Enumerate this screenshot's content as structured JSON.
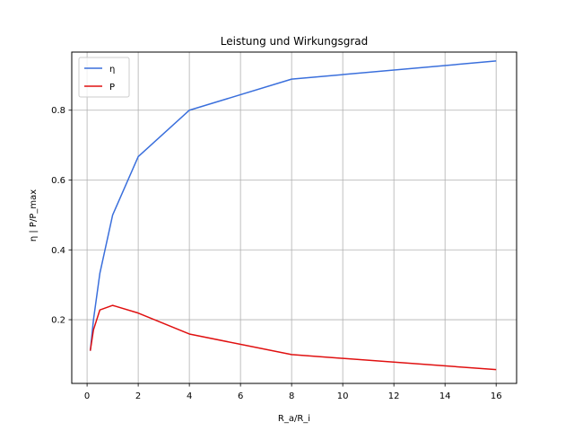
{
  "chart_data": {
    "type": "line",
    "title": "Leistung und Wirkungsgrad",
    "xlabel": "R_a/R_i",
    "ylabel": "η | P/P_max",
    "xlim": [
      -0.6,
      16.8
    ],
    "ylim": [
      0.0175,
      0.9665
    ],
    "xticks": [
      0,
      2,
      4,
      6,
      8,
      10,
      12,
      14,
      16
    ],
    "yticks": [
      0.2,
      0.4,
      0.6,
      0.8
    ],
    "grid": true,
    "legend_position": "top-left",
    "series": [
      {
        "name": "η",
        "color": "#3a6fdc",
        "x": [
          0.125,
          0.25,
          0.5,
          1,
          2,
          4,
          8,
          16
        ],
        "y": [
          0.111,
          0.2,
          0.333,
          0.5,
          0.667,
          0.8,
          0.889,
          0.941
        ]
      },
      {
        "name": "P",
        "color": "#e01010",
        "x": [
          0.125,
          0.25,
          0.5,
          1,
          2,
          4,
          8,
          16
        ],
        "y": [
          0.111,
          0.171,
          0.228,
          0.241,
          0.219,
          0.159,
          0.1,
          0.057
        ]
      }
    ]
  }
}
